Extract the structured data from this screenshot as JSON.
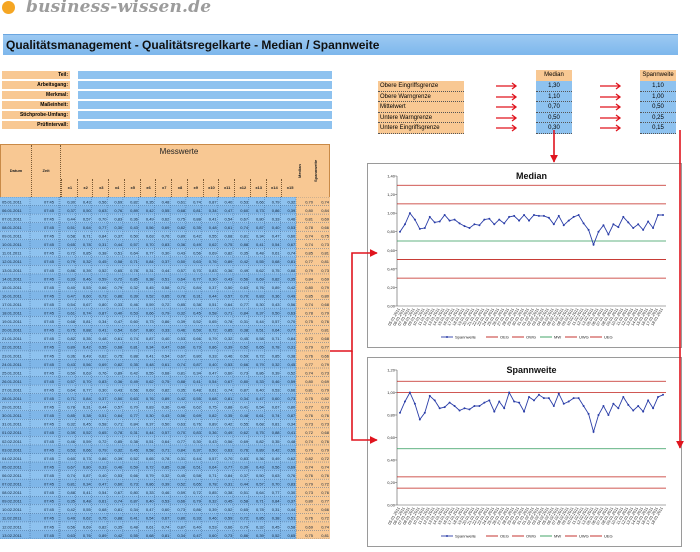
{
  "logo": {
    "text": "business-wissen.de"
  },
  "page_title": "Qualitätsmanagement - Qualitätsregelkarte - Median / Spannweite",
  "info_fields": [
    {
      "label": "Teil:",
      "value": ""
    },
    {
      "label": "Arbeitsgang:",
      "value": ""
    },
    {
      "label": "Merkmal:",
      "value": ""
    },
    {
      "label": "Maßeinheit:",
      "value": ""
    },
    {
      "label": "Stichprobe-Umfang:",
      "value": ""
    },
    {
      "label": "Prüfintervall:",
      "value": ""
    }
  ],
  "table": {
    "col_datum": "Datum",
    "col_zeit": "Zeit",
    "group_header": "Messwerte",
    "measure_cols": [
      "x1",
      "x2",
      "x3",
      "x4",
      "x5",
      "x6",
      "x7",
      "x8",
      "x9",
      "x10",
      "x11",
      "x12",
      "x13",
      "x14",
      "x15"
    ],
    "col_median": "Median",
    "col_range": "Spannweite",
    "dates": [
      "05.01.2011",
      "06.01.2011",
      "07.01.2011",
      "08.01.2011",
      "09.01.2011",
      "10.01.2011",
      "11.01.2011",
      "12.01.2011",
      "13.01.2011",
      "14.01.2011",
      "15.01.2011",
      "16.01.2011",
      "17.01.2011",
      "18.01.2011",
      "19.01.2011",
      "20.01.2011",
      "21.01.2011",
      "22.01.2011",
      "23.01.2011",
      "24.01.2011",
      "25.01.2011",
      "26.01.2011",
      "27.01.2011",
      "28.01.2011",
      "29.01.2011",
      "30.01.2011",
      "31.01.2011",
      "01.02.2011",
      "02.02.2011",
      "03.02.2011",
      "04.02.2011",
      "05.02.2011",
      "06.02.2011",
      "07.02.2011",
      "08.02.2011",
      "09.02.2011",
      "10.02.2011",
      "11.02.2011",
      "12.02.2011",
      "13.02.2011"
    ],
    "time": "07:45",
    "medians": [
      0.699,
      0.8,
      0.81,
      0.78,
      0.74,
      0.74,
      0.85,
      0.77,
      0.79,
      0.84,
      0.8,
      0.85,
      0.74,
      0.78,
      0.75,
      0.77,
      0.72,
      0.79,
      0.76,
      0.77,
      0.74,
      0.8,
      0.81,
      0.75,
      0.77,
      0.76,
      0.73,
      0.72,
      0.74,
      0.79,
      0.82,
      0.74,
      0.76,
      0.79,
      0.73,
      0.8,
      0.74,
      0.76,
      0.69,
      0.75
    ],
    "ranges": [
      0.74,
      0.84,
      0.69,
      0.66,
      0.75,
      0.73,
      0.81,
      0.81,
      0.73,
      0.69,
      0.79,
      0.8,
      0.68,
      0.79,
      0.76,
      0.81,
      0.68,
      0.77,
      0.66,
      0.79,
      0.73,
      0.69,
      0.79,
      0.82,
      0.73,
      0.76,
      0.73,
      0.68,
      0.76,
      0.79,
      0.72,
      0.74,
      0.76,
      0.72,
      0.76,
      0.77,
      0.66,
      0.72,
      0.74,
      0.81
    ]
  },
  "limits": {
    "header_median": "Median",
    "header_range": "Spannweite",
    "rows": [
      {
        "label": "Obere Eingriffsgrenze",
        "median": "1,30",
        "range": "1,10"
      },
      {
        "label": "Obere Warngrenze",
        "median": "1,10",
        "range": "1,00"
      },
      {
        "label": "Mittelwert",
        "median": "0,70",
        "range": "0,50"
      },
      {
        "label": "Untere Warngrenze",
        "median": "0,50",
        "range": "0,25"
      },
      {
        "label": "Untere Eingriffsgrenze",
        "median": "0,30",
        "range": "0,15"
      }
    ]
  },
  "colors": {
    "accent_blue": "#8ec2ef",
    "header_orange": "#f8c893",
    "arrow_red": "#e0141e",
    "line_blue": "#2b3ea8",
    "limit_red": "#c0201a",
    "mid_green": "#2f9a5a"
  },
  "chart_data": [
    {
      "type": "line",
      "title": "Median",
      "ylim": [
        0,
        1.4
      ],
      "yticks": [
        "0,00",
        "0,20",
        "0,40",
        "0,60",
        "0,80",
        "1,00",
        "1,20",
        "1,40"
      ],
      "series": [
        {
          "name": "Spannweite",
          "values": [
            0.8,
            0.88,
            1.0,
            0.93,
            0.83,
            0.84,
            0.96,
            0.9,
            0.91,
            0.98,
            0.92,
            0.93,
            0.89,
            0.86,
            0.84,
            0.88,
            0.87,
            0.93,
            0.94,
            0.88,
            0.93,
            0.89,
            0.96,
            0.97,
            0.92,
            0.98,
            0.92,
            0.98,
            0.97,
            0.97,
            0.95,
            0.88,
            0.97,
            0.87,
            0.92,
            0.96,
            0.98,
            0.89,
            0.82,
            0.66,
            0.8,
            0.87,
            0.77,
            0.88,
            0.85,
            0.96,
            0.9,
            0.84,
            0.88,
            0.82,
            0.91,
            0.84,
            0.98,
            0.98
          ]
        }
      ],
      "reference_lines": [
        {
          "name": "OEG",
          "value": 1.3
        },
        {
          "name": "OWG",
          "value": 1.1
        },
        {
          "name": "MW",
          "value": 0.7
        },
        {
          "name": "UWG",
          "value": 0.5
        },
        {
          "name": "UEG",
          "value": 0.3
        }
      ],
      "legend": [
        "Spannweite",
        "OEG",
        "OWG",
        "MW",
        "UWG",
        "UEG"
      ]
    },
    {
      "type": "line",
      "title": "Spannweite",
      "ylim": [
        0,
        1.2
      ],
      "yticks": [
        "0,00",
        "0,20",
        "0,40",
        "0,60",
        "0,80",
        "1,00",
        "1,20"
      ],
      "series": [
        {
          "name": "Spannweite",
          "values": [
            0.82,
            0.92,
            1.0,
            0.9,
            0.76,
            0.82,
            0.97,
            0.93,
            0.86,
            0.87,
            0.91,
            0.88,
            0.84,
            0.86,
            0.85,
            0.88,
            0.88,
            0.91,
            0.93,
            0.83,
            0.92,
            0.86,
            1.0,
            0.92,
            0.91,
            0.83,
            0.96,
            0.93,
            0.98,
            0.95,
            0.95,
            0.88,
            0.99,
            0.9,
            0.92,
            0.95,
            0.95,
            0.88,
            0.81,
            0.65,
            0.8,
            0.88,
            0.8,
            0.9,
            0.86,
            0.96,
            0.89,
            0.84,
            0.88,
            0.83,
            0.93,
            0.86,
            0.96,
            0.98
          ]
        }
      ],
      "reference_lines": [
        {
          "name": "OEG",
          "value": 1.1
        },
        {
          "name": "OWG",
          "value": 1.0
        },
        {
          "name": "MW",
          "value": 0.5
        },
        {
          "name": "UWG",
          "value": 0.25
        },
        {
          "name": "UEG",
          "value": 0.15
        }
      ],
      "legend": [
        "Spannweite",
        "OEG",
        "OWG",
        "MW",
        "UWG",
        "UEG"
      ]
    }
  ]
}
